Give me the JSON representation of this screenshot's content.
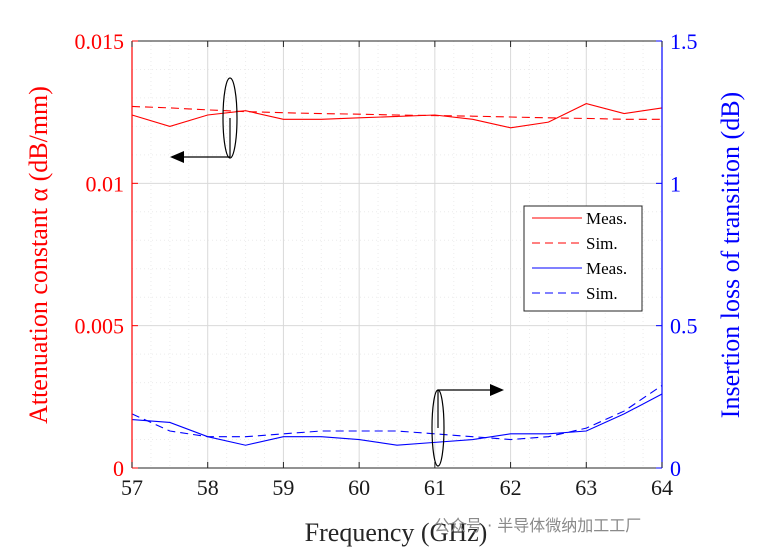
{
  "chart_data": {
    "type": "line",
    "x": [
      57,
      57.5,
      58,
      58.5,
      59,
      59.5,
      60,
      60.5,
      61,
      61.5,
      62,
      62.5,
      63,
      63.5,
      64
    ],
    "xlabel": "Frequency (GHz)",
    "xlim": [
      57,
      64
    ],
    "xticks": [
      "57",
      "58",
      "59",
      "60",
      "61",
      "62",
      "63",
      "64"
    ],
    "ylabel_left": "Attenuation constant α (dB/mm)",
    "ylim_left": [
      0,
      0.015
    ],
    "yticks_left": [
      "0",
      "0.005",
      "0.01",
      "0.015"
    ],
    "ylabel_right": "Insertion loss of transition (dB)",
    "ylim_right": [
      0,
      1.5
    ],
    "yticks_right": [
      "0",
      "0.5",
      "1",
      "1.5"
    ],
    "grid": true,
    "legend_position": "right",
    "series": [
      {
        "name": "Meas.",
        "axis": "left",
        "color": "#ff0000",
        "dash": "solid",
        "values": [
          0.0124,
          0.012,
          0.0124,
          0.01255,
          0.01225,
          0.01225,
          0.0123,
          0.01235,
          0.0124,
          0.01225,
          0.01195,
          0.01215,
          0.0128,
          0.01245,
          0.01265
        ]
      },
      {
        "name": "Sim.",
        "axis": "left",
        "color": "#ff0000",
        "dash": "dashed",
        "values": [
          0.0127,
          0.01265,
          0.01258,
          0.01252,
          0.01248,
          0.01245,
          0.01243,
          0.0124,
          0.01238,
          0.01236,
          0.01233,
          0.0123,
          0.01228,
          0.01225,
          0.01225
        ]
      },
      {
        "name": "Meas.",
        "axis": "right",
        "color": "#0000ff",
        "dash": "solid",
        "values": [
          0.17,
          0.16,
          0.11,
          0.08,
          0.11,
          0.11,
          0.1,
          0.08,
          0.09,
          0.1,
          0.12,
          0.12,
          0.13,
          0.19,
          0.26
        ]
      },
      {
        "name": "Sim.",
        "axis": "right",
        "color": "#0000ff",
        "dash": "dashed",
        "values": [
          0.19,
          0.13,
          0.11,
          0.11,
          0.12,
          0.13,
          0.13,
          0.13,
          0.12,
          0.11,
          0.1,
          0.11,
          0.14,
          0.2,
          0.29
        ]
      }
    ],
    "legend_labels": [
      "Meas.",
      "Sim.",
      "Meas.",
      "Sim."
    ]
  },
  "watermark": "公众号 · 半导体微纳加工工厂",
  "colors": {
    "left_axis": "#ff0000",
    "right_axis": "#0000ff",
    "frame": "#262626"
  }
}
